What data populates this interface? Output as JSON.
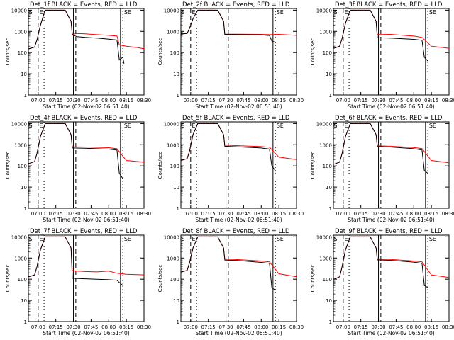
{
  "colors": {
    "events": "#000000",
    "lld": "#ff0000",
    "axis": "#000000",
    "background": "#ffffff"
  },
  "chart_data": [
    {
      "type": "line",
      "title": "Det_1f BLACK = Events, RED = LLD",
      "xlabel": "Start Time (02-Nov-02 06:51:40)",
      "ylabel": "Counts/sec",
      "yscale": "log",
      "ylim": [
        1,
        12000
      ],
      "xlim": [
        "06:51",
        "08:30"
      ],
      "x_ticks": [
        "07:00",
        "07:15",
        "07:30",
        "07:45",
        "08:00",
        "08:15",
        "08:30"
      ],
      "y_ticks": [
        "1",
        "10",
        "100",
        "1000",
        "10000"
      ],
      "markers": [
        "S",
        "E",
        "S",
        "E"
      ],
      "grid": false,
      "series": [
        {
          "name": "Events",
          "color": "#000000",
          "x": [
            "06:52",
            "06:57",
            "06:59",
            "07:02",
            "07:05",
            "07:06",
            "07:23",
            "07:28",
            "07:29",
            "07:33",
            "07:40",
            "07:50",
            "08:00",
            "08:07",
            "08:09",
            "08:12",
            "08:13"
          ],
          "y": [
            150,
            180,
            400,
            2000,
            7000,
            10000,
            10000,
            3000,
            700,
            560,
            520,
            480,
            430,
            390,
            45,
            60,
            30
          ]
        },
        {
          "name": "LLD",
          "color": "#ff0000",
          "x": [
            "06:52",
            "06:57",
            "06:59",
            "07:02",
            "07:05",
            "07:06",
            "07:23",
            "07:28",
            "07:29",
            "07:33",
            "07:40",
            "07:50",
            "08:00",
            "08:07",
            "08:09",
            "08:15",
            "08:25",
            "08:30"
          ],
          "y": [
            150,
            180,
            400,
            2000,
            7000,
            10000,
            10000,
            3000,
            720,
            800,
            760,
            700,
            650,
            600,
            230,
            200,
            170,
            150
          ]
        }
      ]
    },
    {
      "type": "line",
      "title": "Det_2f BLACK = Events, RED = LLD",
      "xlabel": "Start Time (02-Nov-02 06:51:40)",
      "ylabel": "Counts/sec",
      "yscale": "log",
      "ylim": [
        1,
        12000
      ],
      "xlim": [
        "06:51",
        "08:30"
      ],
      "x_ticks": [
        "07:00",
        "07:15",
        "07:30",
        "07:45",
        "08:00",
        "08:15",
        "08:30"
      ],
      "y_ticks": [
        "1",
        "10",
        "100",
        "1000",
        "10000"
      ],
      "markers": [
        "S",
        "E",
        "S",
        "E"
      ],
      "grid": false,
      "series": [
        {
          "name": "Events",
          "color": "#000000",
          "x": [
            "06:52",
            "06:57",
            "06:59",
            "07:02",
            "07:06",
            "07:23",
            "07:28",
            "07:29",
            "07:40",
            "08:00",
            "08:07",
            "08:09",
            "08:12"
          ],
          "y": [
            750,
            800,
            1400,
            4000,
            10000,
            10000,
            3000,
            720,
            700,
            680,
            640,
            350,
            300
          ]
        },
        {
          "name": "LLD",
          "color": "#ff0000",
          "x": [
            "06:52",
            "06:57",
            "06:59",
            "07:02",
            "07:06",
            "07:23",
            "07:28",
            "07:29",
            "07:40",
            "08:00",
            "08:07",
            "08:15",
            "08:30"
          ],
          "y": [
            750,
            800,
            1400,
            4000,
            10000,
            10000,
            3000,
            740,
            740,
            720,
            700,
            720,
            650
          ]
        }
      ]
    },
    {
      "type": "line",
      "title": "Det_3f BLACK = Events, RED = LLD",
      "xlabel": "Start Time (02-Nov-02 06:51:40)",
      "ylabel": "Counts/sec",
      "yscale": "log",
      "ylim": [
        1,
        12000
      ],
      "xlim": [
        "06:51",
        "08:30"
      ],
      "x_ticks": [
        "07:00",
        "07:15",
        "07:30",
        "07:45",
        "08:00",
        "08:15",
        "08:30"
      ],
      "y_ticks": [
        "1",
        "10",
        "100",
        "1000",
        "10000"
      ],
      "markers": [
        "S",
        "E",
        "S",
        "E"
      ],
      "grid": false,
      "series": [
        {
          "name": "Events",
          "color": "#000000",
          "x": [
            "06:52",
            "06:57",
            "06:59",
            "07:02",
            "07:06",
            "07:23",
            "07:28",
            "07:29",
            "07:40",
            "08:00",
            "08:07",
            "08:09",
            "08:12"
          ],
          "y": [
            160,
            200,
            450,
            2500,
            10000,
            10000,
            3000,
            500,
            480,
            420,
            380,
            60,
            40
          ]
        },
        {
          "name": "LLD",
          "color": "#ff0000",
          "x": [
            "06:52",
            "06:57",
            "06:59",
            "07:02",
            "07:06",
            "07:23",
            "07:28",
            "07:29",
            "07:40",
            "08:00",
            "08:07",
            "08:15",
            "08:30"
          ],
          "y": [
            160,
            200,
            450,
            2500,
            10000,
            10000,
            3000,
            700,
            720,
            600,
            520,
            200,
            160
          ]
        }
      ]
    },
    {
      "type": "line",
      "title": "Det_4f BLACK = Events, RED = LLD",
      "xlabel": "Start Time (02-Nov-02 06:51:40)",
      "ylabel": "Counts/sec",
      "yscale": "log",
      "ylim": [
        1,
        12000
      ],
      "xlim": [
        "06:51",
        "08:30"
      ],
      "x_ticks": [
        "07:00",
        "07:15",
        "07:30",
        "07:45",
        "08:00",
        "08:15",
        "08:30"
      ],
      "y_ticks": [
        "1",
        "10",
        "100",
        "1000",
        "10000"
      ],
      "markers": [
        "S",
        "E",
        "S",
        "E"
      ],
      "grid": false,
      "series": [
        {
          "name": "Events",
          "color": "#000000",
          "x": [
            "06:52",
            "06:57",
            "06:59",
            "07:02",
            "07:06",
            "07:23",
            "07:28",
            "07:29",
            "07:40",
            "08:00",
            "08:07",
            "08:09",
            "08:12"
          ],
          "y": [
            130,
            160,
            400,
            2500,
            10000,
            10000,
            3000,
            700,
            680,
            620,
            560,
            45,
            25
          ]
        },
        {
          "name": "LLD",
          "color": "#ff0000",
          "x": [
            "06:52",
            "06:57",
            "06:59",
            "07:02",
            "07:06",
            "07:23",
            "07:28",
            "07:29",
            "07:40",
            "08:00",
            "08:07",
            "08:15",
            "08:30"
          ],
          "y": [
            130,
            160,
            400,
            2500,
            10000,
            10000,
            3000,
            800,
            780,
            720,
            650,
            180,
            150
          ]
        }
      ]
    },
    {
      "type": "line",
      "title": "Det_5f BLACK = Events, RED = LLD",
      "xlabel": "Start Time (02-Nov-02 06:51:40)",
      "ylabel": "Counts/sec",
      "yscale": "log",
      "ylim": [
        1,
        12000
      ],
      "xlim": [
        "06:51",
        "08:30"
      ],
      "x_ticks": [
        "07:00",
        "07:15",
        "07:30",
        "07:45",
        "08:00",
        "08:15",
        "08:30"
      ],
      "y_ticks": [
        "1",
        "10",
        "100",
        "1000",
        "10000"
      ],
      "markers": [
        "S",
        "E",
        "S",
        "E"
      ],
      "grid": false,
      "series": [
        {
          "name": "Events",
          "color": "#000000",
          "x": [
            "06:52",
            "06:57",
            "06:59",
            "07:02",
            "07:06",
            "07:23",
            "07:28",
            "07:29",
            "07:40",
            "08:00",
            "08:07",
            "08:09",
            "08:12"
          ],
          "y": [
            180,
            220,
            500,
            3000,
            10000,
            10000,
            3000,
            850,
            800,
            700,
            620,
            100,
            60
          ]
        },
        {
          "name": "LLD",
          "color": "#ff0000",
          "x": [
            "06:52",
            "06:57",
            "06:59",
            "07:02",
            "07:06",
            "07:23",
            "07:28",
            "07:29",
            "07:40",
            "08:00",
            "08:07",
            "08:15",
            "08:30"
          ],
          "y": [
            180,
            220,
            500,
            3000,
            10000,
            10000,
            3000,
            950,
            900,
            820,
            760,
            260,
            200
          ]
        }
      ]
    },
    {
      "type": "line",
      "title": "Det_6f BLACK = Events, RED = LLD",
      "xlabel": "Start Time (02-Nov-02 06:51:40)",
      "ylabel": "Counts/sec",
      "yscale": "log",
      "ylim": [
        1,
        12000
      ],
      "xlim": [
        "06:51",
        "08:30"
      ],
      "x_ticks": [
        "07:00",
        "07:15",
        "07:30",
        "07:45",
        "08:00",
        "08:15",
        "08:30"
      ],
      "y_ticks": [
        "1",
        "10",
        "100",
        "1000",
        "10000"
      ],
      "markers": [
        "S",
        "E",
        "S",
        "E"
      ],
      "grid": false,
      "series": [
        {
          "name": "Events",
          "color": "#000000",
          "x": [
            "06:52",
            "06:57",
            "06:59",
            "07:02",
            "07:06",
            "07:23",
            "07:28",
            "07:29",
            "07:40",
            "08:00",
            "08:07",
            "08:09",
            "08:12"
          ],
          "y": [
            120,
            150,
            380,
            2500,
            10000,
            10000,
            3000,
            820,
            780,
            650,
            560,
            60,
            45
          ]
        },
        {
          "name": "LLD",
          "color": "#ff0000",
          "x": [
            "06:52",
            "06:57",
            "06:59",
            "07:02",
            "07:06",
            "07:23",
            "07:28",
            "07:29",
            "07:40",
            "08:00",
            "08:07",
            "08:15",
            "08:30"
          ],
          "y": [
            120,
            150,
            380,
            2500,
            10000,
            10000,
            3000,
            880,
            850,
            740,
            660,
            180,
            140
          ]
        }
      ]
    },
    {
      "type": "line",
      "title": "Det_7f BLACK = Events, RED = LLD",
      "xlabel": "Start Time (02-Nov-02 06:51:40)",
      "ylabel": "Counts/sec",
      "yscale": "log",
      "ylim": [
        1,
        12000
      ],
      "xlim": [
        "06:51",
        "08:30"
      ],
      "x_ticks": [
        "07:00",
        "07:15",
        "07:30",
        "07:45",
        "08:00",
        "08:15",
        "08:30"
      ],
      "y_ticks": [
        "1",
        "10",
        "100",
        "1000",
        "10000"
      ],
      "markers": [
        "S",
        "E",
        "S",
        "E"
      ],
      "grid": false,
      "series": [
        {
          "name": "Events",
          "color": "#000000",
          "x": [
            "06:52",
            "06:57",
            "06:59",
            "07:02",
            "07:06",
            "07:23",
            "07:28",
            "07:29",
            "07:40",
            "07:50",
            "08:00",
            "08:07",
            "08:09",
            "08:12"
          ],
          "y": [
            130,
            160,
            400,
            2500,
            10000,
            10000,
            3000,
            110,
            105,
            100,
            95,
            90,
            70,
            50
          ]
        },
        {
          "name": "LLD",
          "color": "#ff0000",
          "x": [
            "06:52",
            "06:57",
            "06:59",
            "07:02",
            "07:06",
            "07:23",
            "07:28",
            "07:29",
            "07:40",
            "07:50",
            "08:00",
            "08:07",
            "08:15",
            "08:30"
          ],
          "y": [
            130,
            160,
            400,
            2500,
            10000,
            10000,
            3000,
            250,
            230,
            220,
            240,
            190,
            170,
            160
          ]
        }
      ]
    },
    {
      "type": "line",
      "title": "Det_8f BLACK = Events, RED = LLD",
      "xlabel": "Start Time (02-Nov-02 06:51:40)",
      "ylabel": "Counts/sec",
      "yscale": "log",
      "ylim": [
        1,
        12000
      ],
      "xlim": [
        "06:51",
        "08:30"
      ],
      "x_ticks": [
        "07:00",
        "07:15",
        "07:30",
        "07:45",
        "08:00",
        "08:15",
        "08:30"
      ],
      "y_ticks": [
        "1",
        "10",
        "100",
        "1000",
        "10000"
      ],
      "markers": [
        "S",
        "E",
        "S",
        "E"
      ],
      "grid": false,
      "series": [
        {
          "name": "Events",
          "color": "#000000",
          "x": [
            "06:52",
            "06:57",
            "06:59",
            "07:02",
            "07:06",
            "07:23",
            "07:28",
            "07:29",
            "07:40",
            "08:00",
            "08:07",
            "08:09",
            "08:12"
          ],
          "y": [
            220,
            260,
            600,
            3000,
            10000,
            10000,
            3000,
            800,
            760,
            620,
            560,
            40,
            30
          ]
        },
        {
          "name": "LLD",
          "color": "#ff0000",
          "x": [
            "06:52",
            "06:57",
            "06:59",
            "07:02",
            "07:06",
            "07:23",
            "07:28",
            "07:29",
            "07:40",
            "08:00",
            "08:07",
            "08:15",
            "08:30"
          ],
          "y": [
            220,
            260,
            600,
            3000,
            10000,
            10000,
            3000,
            880,
            840,
            720,
            660,
            180,
            130
          ]
        }
      ]
    },
    {
      "type": "line",
      "title": "Det_9f BLACK = Events, RED = LLD",
      "xlabel": "Start Time (02-Nov-02 06:51:40)",
      "ylabel": "Counts/sec",
      "yscale": "log",
      "ylim": [
        1,
        12000
      ],
      "xlim": [
        "06:51",
        "08:30"
      ],
      "x_ticks": [
        "07:00",
        "07:15",
        "07:30",
        "07:45",
        "08:00",
        "08:15",
        "08:30"
      ],
      "y_ticks": [
        "1",
        "10",
        "100",
        "1000",
        "10000"
      ],
      "markers": [
        "S",
        "E",
        "S",
        "E"
      ],
      "grid": false,
      "series": [
        {
          "name": "Events",
          "color": "#000000",
          "x": [
            "06:52",
            "06:57",
            "06:59",
            "07:02",
            "07:06",
            "07:23",
            "07:28",
            "07:29",
            "07:40",
            "08:00",
            "08:07",
            "08:09",
            "08:12"
          ],
          "y": [
            100,
            130,
            380,
            2500,
            10000,
            10000,
            3000,
            820,
            780,
            640,
            560,
            50,
            40
          ]
        },
        {
          "name": "LLD",
          "color": "#ff0000",
          "x": [
            "06:52",
            "06:57",
            "06:59",
            "07:02",
            "07:06",
            "07:23",
            "07:28",
            "07:29",
            "07:40",
            "08:00",
            "08:07",
            "08:15",
            "08:30"
          ],
          "y": [
            100,
            130,
            380,
            2500,
            10000,
            10000,
            3000,
            900,
            860,
            720,
            660,
            160,
            120
          ]
        }
      ]
    }
  ]
}
